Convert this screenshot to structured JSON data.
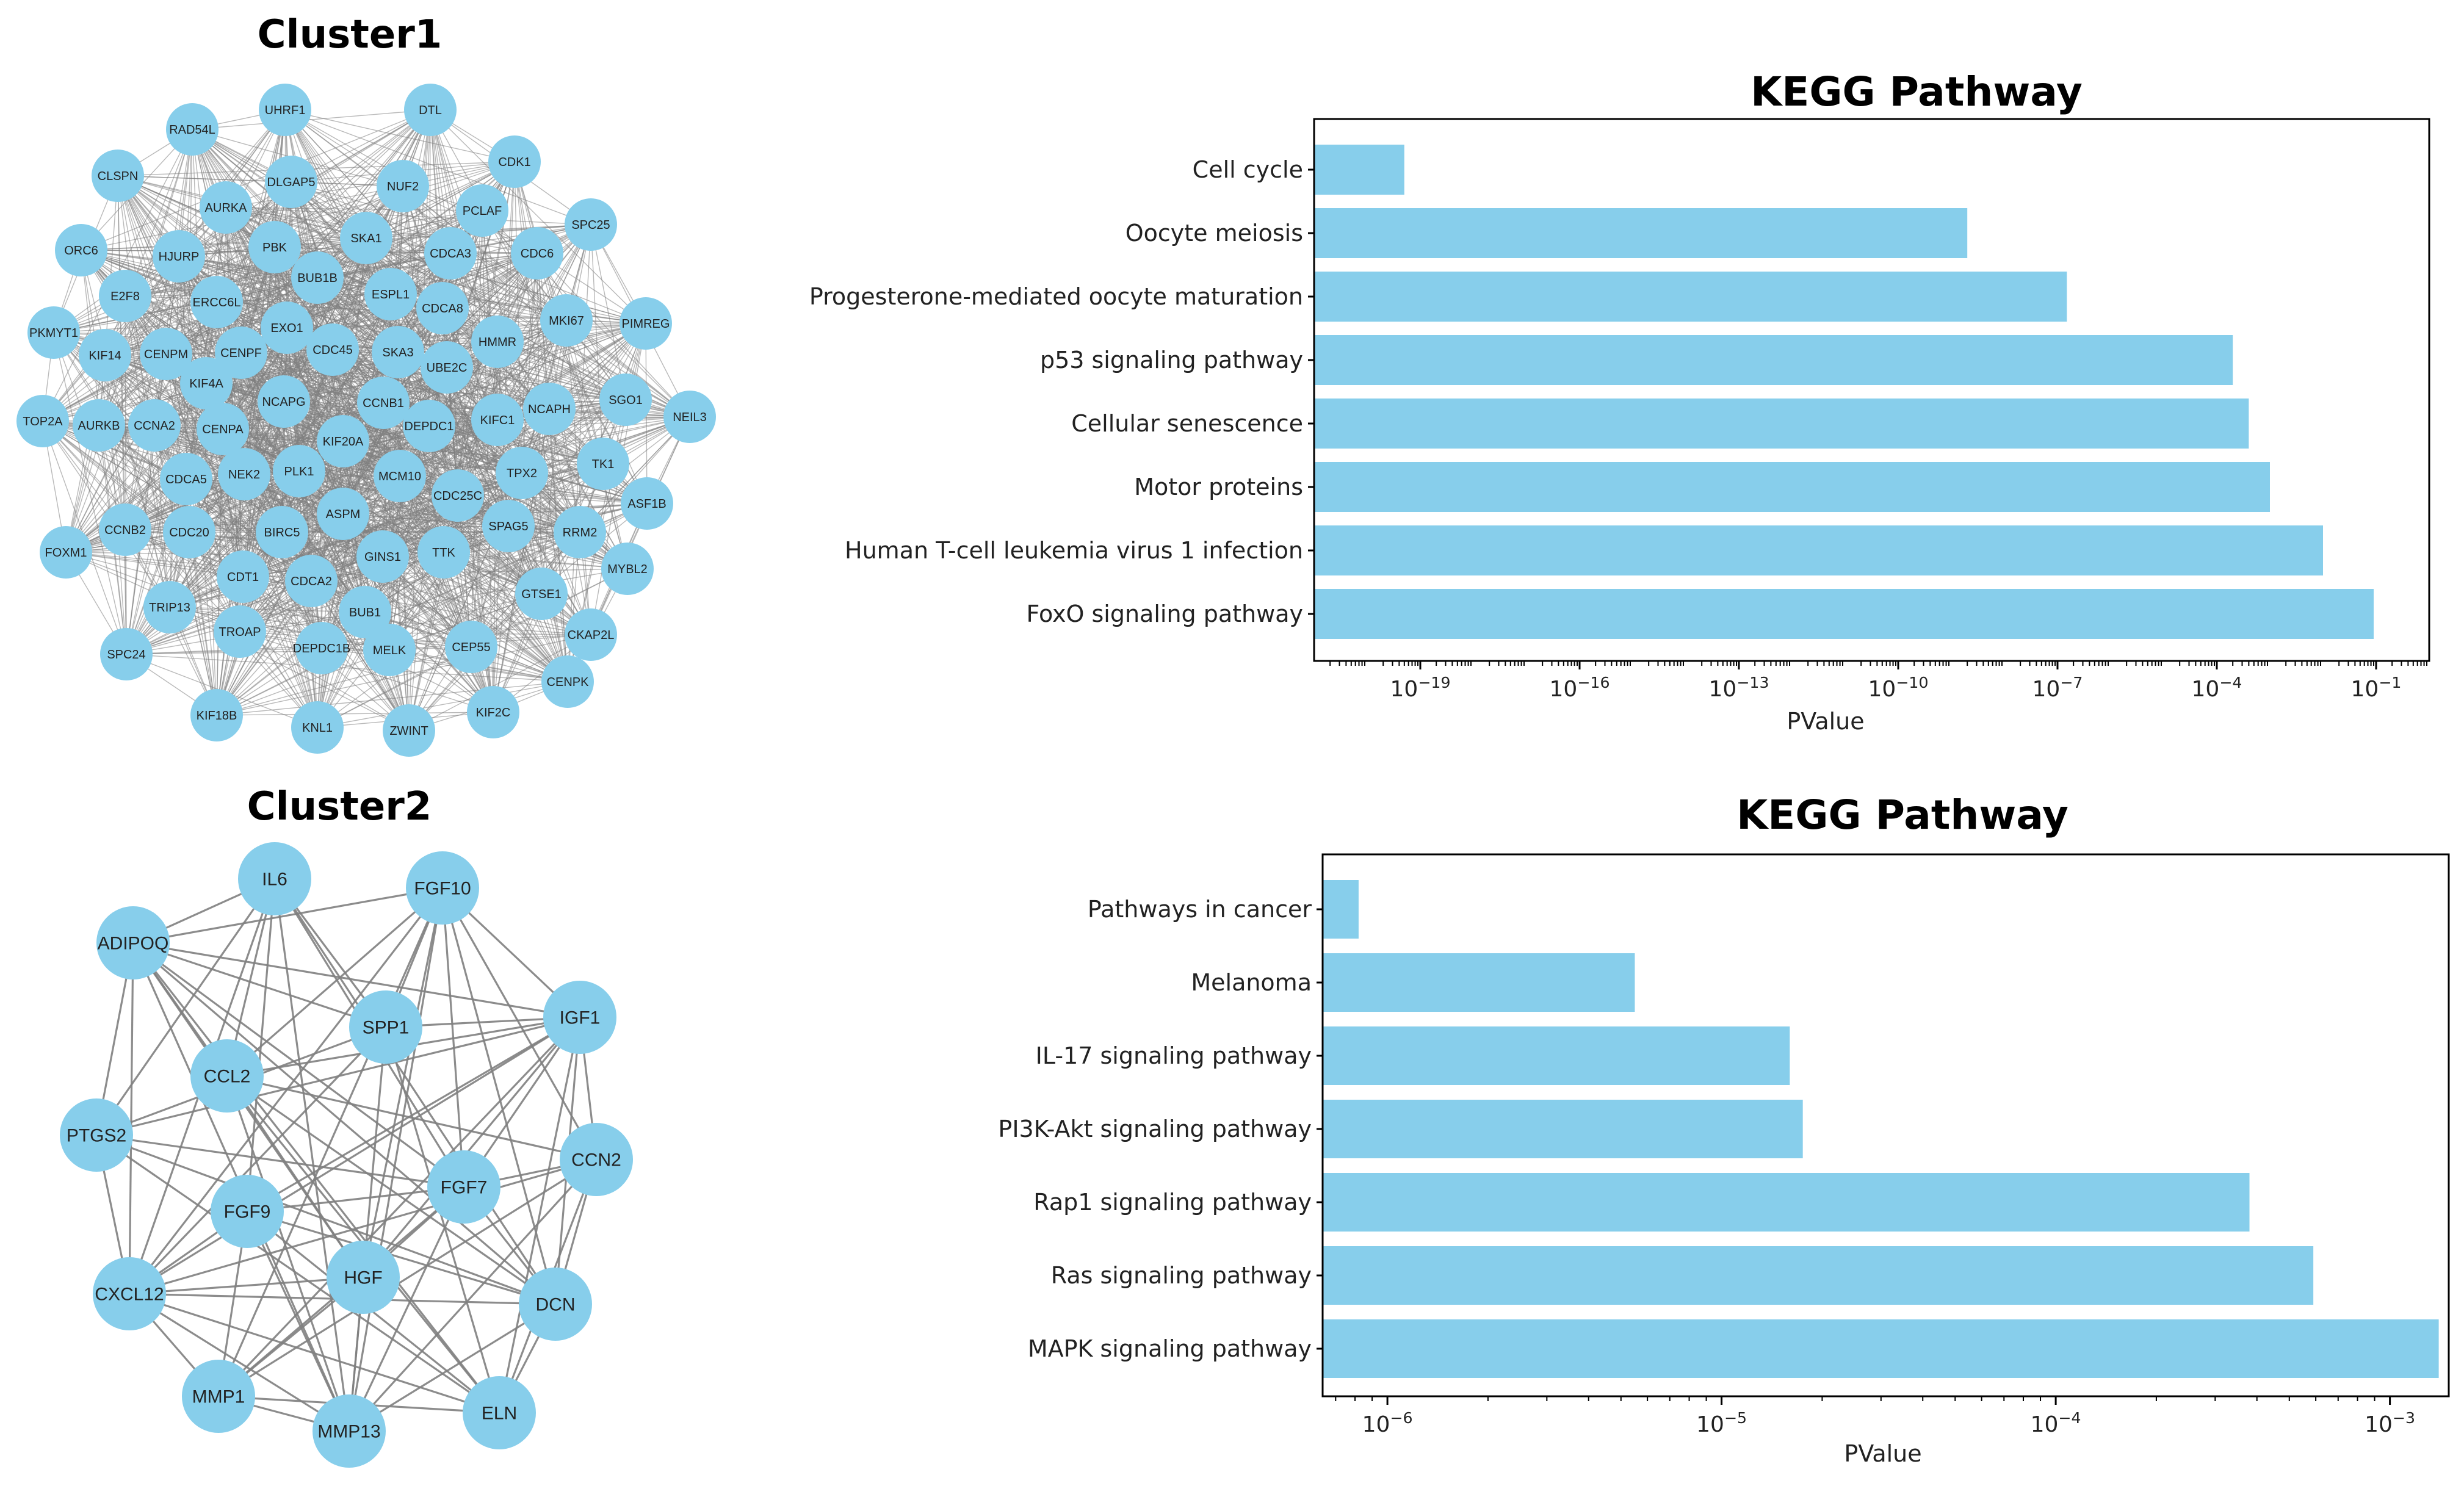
{
  "colors": {
    "node": "#87ceeb",
    "bar": "#87ceeb",
    "edge": "#808080",
    "axis": "#000000"
  },
  "networks": [
    {
      "title": "Cluster1",
      "nodes": [
        "UHRF1",
        "DTL",
        "RAD54L",
        "CDK1",
        "CLSPN",
        "DLGAP5",
        "NUF2",
        "PCLAF",
        "AURKA",
        "SPC25",
        "ORC6",
        "PBK",
        "SKA1",
        "CDCA3",
        "CDC6",
        "HJURP",
        "BUB1B",
        "E2F8",
        "ERCC6L",
        "ESPL1",
        "PIMREG",
        "CDCA8",
        "MKI67",
        "PKMYT1",
        "EXO1",
        "KIF14",
        "CENPM",
        "CENPF",
        "CDC45",
        "SKA3",
        "HMMR",
        "UBE2C",
        "KIF4A",
        "NCAPG",
        "CCNB1",
        "SGO1",
        "NCAPH",
        "NEIL3",
        "TOP2A",
        "AURKB",
        "CCNA2",
        "CENPA",
        "KIF20A",
        "DEPDC1",
        "KIFC1",
        "TK1",
        "TPX2",
        "PLK1",
        "NEK2",
        "MCM10",
        "CDCA5",
        "ASF1B",
        "CDC25C",
        "CCNB2",
        "CDC20",
        "BIRC5",
        "ASPM",
        "SPAG5",
        "RRM2",
        "FOXM1",
        "GINS1",
        "TTK",
        "MYBL2",
        "CDT1",
        "CDCA2",
        "TRIP13",
        "GTSE1",
        "BUB1",
        "TROAP",
        "CKAP2L",
        "DEPDC1B",
        "MELK",
        "CEP55",
        "SPC24",
        "CENPK",
        "KIF18B",
        "KIF2C",
        "KNL1",
        "ZWINT"
      ]
    },
    {
      "title": "Cluster2",
      "nodes": [
        "IL6",
        "FGF10",
        "ADIPOQ",
        "SPP1",
        "IGF1",
        "CCL2",
        "PTGS2",
        "CCN2",
        "FGF7",
        "FGF9",
        "HGF",
        "CXCL12",
        "DCN",
        "MMP1",
        "ELN",
        "MMP13"
      ]
    }
  ],
  "chart_data": [
    {
      "type": "bar",
      "orientation": "horizontal",
      "title": "KEGG Pathway",
      "xlabel": "PValue",
      "xscale": "log",
      "xlim": [
        1e-21,
        1
      ],
      "ticks": [
        "10^-19",
        "10^-16",
        "10^-13",
        "10^-10",
        "10^-7",
        "10^-4",
        "10^-1"
      ],
      "categories": [
        "Cell cycle",
        "Oocyte meiosis",
        "Progesterone-mediated oocyte maturation",
        "p53 signaling pathway",
        "Cellular senescence",
        "Motor proteins",
        "Human T-cell leukemia virus 1 infection",
        "FoxO signaling pathway"
      ],
      "values": [
        5e-20,
        2e-09,
        1.5e-07,
        0.0002,
        0.0004,
        0.001,
        0.01,
        0.09
      ]
    },
    {
      "type": "bar",
      "orientation": "horizontal",
      "title": "KEGG Pathway",
      "xlabel": "PValue",
      "xscale": "log",
      "xlim": [
        6.4e-07,
        0.0015
      ],
      "ticks": [
        "10^-6",
        "10^-5",
        "10^-4",
        "10^-3"
      ],
      "categories": [
        "Pathways in cancer",
        "Melanoma",
        "IL-17 signaling pathway",
        "PI3K-Akt signaling pathway",
        "Rap1 signaling pathway",
        "Ras signaling pathway",
        "MAPK signaling pathway"
      ],
      "values": [
        8.2e-07,
        5.5e-06,
        1.6e-05,
        1.75e-05,
        0.00038,
        0.00059,
        0.0014
      ]
    }
  ]
}
